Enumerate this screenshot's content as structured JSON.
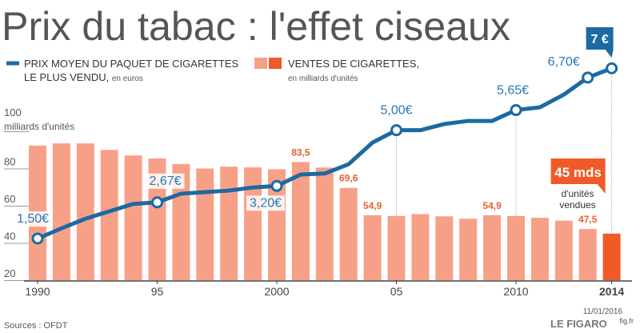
{
  "chart_data": {
    "type": "bar+line",
    "title": "Prix du tabac : l'effet ciseaux",
    "legend": {
      "line": [
        "PRIX MOYEN DU PAQUET DE CIGARETTES",
        "LE PLUS VENDU,",
        "en euros"
      ],
      "bar": [
        "VENTES DE CIGARETTES,",
        "en milliards d'unités"
      ]
    },
    "categories": [
      "1990",
      null,
      null,
      null,
      null,
      "95",
      null,
      null,
      null,
      null,
      "2000",
      null,
      null,
      null,
      null,
      "05",
      null,
      null,
      null,
      null,
      "2010",
      null,
      null,
      null,
      "2014"
    ],
    "ylim": [
      20,
      100
    ],
    "yticks": [
      20,
      40,
      60,
      80,
      100
    ],
    "y_axis_label": "milliards d'unités",
    "y2lim": [
      0,
      9
    ],
    "series": [
      {
        "name": "VENTES DE CIGARETTES",
        "color": "#f7a088",
        "highlight_color": "#f05a28",
        "values": [
          92.3,
          93.5,
          93.5,
          90,
          87,
          85.4,
          82.4,
          80,
          81,
          80.6,
          79.6,
          83.5,
          80.5,
          69.6,
          54.9,
          54.5,
          55.5,
          54.3,
          53,
          54.9,
          54.5,
          53.5,
          52,
          47.5,
          45
        ],
        "value_labels": [
          null,
          null,
          null,
          null,
          null,
          null,
          null,
          null,
          null,
          null,
          null,
          "83,5",
          null,
          "69,6",
          "54,9",
          null,
          null,
          null,
          null,
          "54,9",
          null,
          null,
          null,
          "47,5",
          "45 mds"
        ]
      },
      {
        "name": "PRIX MOYEN DU PAQUET DE CIGARETTES",
        "color": "#1c69a3",
        "axis": "y2",
        "values": [
          1.5,
          1.83,
          2.14,
          2.38,
          2.62,
          2.67,
          2.95,
          3.0,
          3.05,
          3.15,
          3.2,
          3.57,
          3.6,
          3.9,
          4.6,
          5.0,
          5.0,
          5.2,
          5.3,
          5.3,
          5.65,
          5.74,
          6.15,
          6.7,
          7
        ],
        "value_labels": [
          "1,50€",
          null,
          null,
          null,
          null,
          "2,67€",
          null,
          null,
          null,
          null,
          "3,20€",
          null,
          null,
          null,
          null,
          "5,00€",
          null,
          null,
          null,
          null,
          "5,65€",
          null,
          null,
          "6,70€",
          "7 €"
        ]
      }
    ],
    "annotation": [
      "d'unités",
      "vendues"
    ],
    "source": "Sources : OFDT",
    "date": "11/01/2016",
    "publisher": "LE FIGARO",
    "site": "fig.fr"
  }
}
